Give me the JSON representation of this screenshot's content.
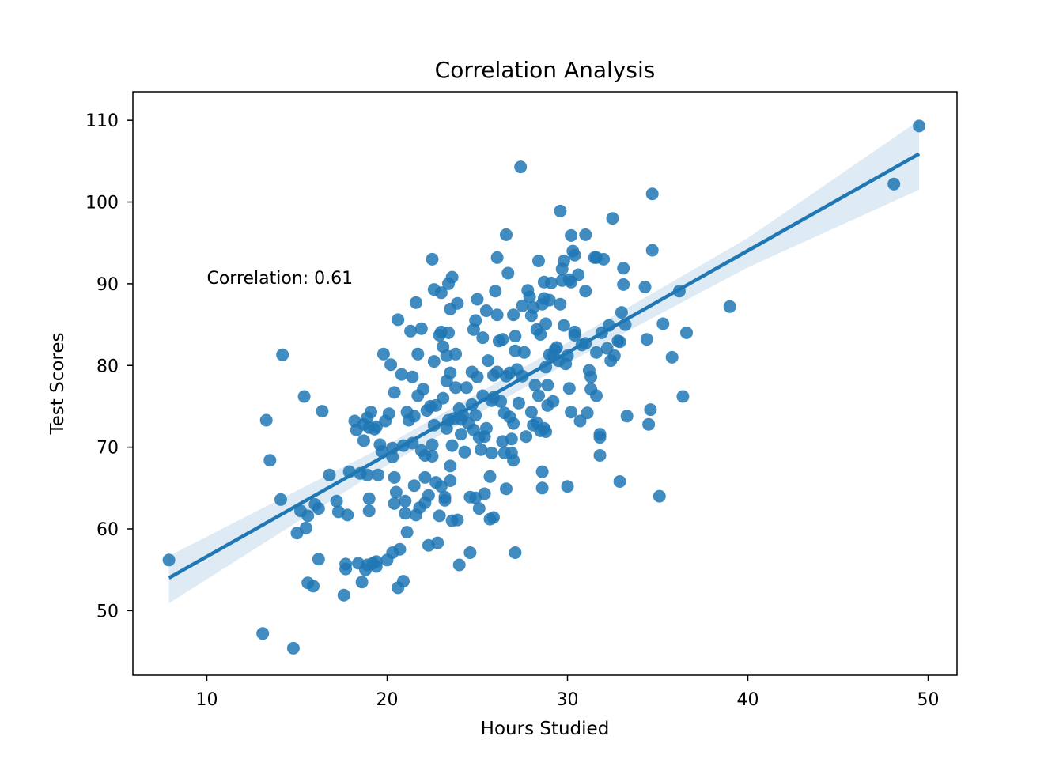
{
  "chart_data": {
    "type": "scatter",
    "title": "Correlation Analysis",
    "xlabel": "Hours Studied",
    "ylabel": "Test Scores",
    "xlim": [
      5.9,
      51.6
    ],
    "ylim": [
      42.1,
      113.5
    ],
    "xticks": [
      10,
      20,
      30,
      40,
      50
    ],
    "yticks": [
      50,
      60,
      70,
      80,
      90,
      100,
      110
    ],
    "grid": false,
    "legend": "none",
    "colors": {
      "points": "#1f77b4",
      "line": "#1f77b4",
      "band": "#1f77b4"
    },
    "annotation": {
      "text": "Correlation: 0.61",
      "x": 10.0,
      "y": 90.0
    },
    "regression": {
      "x": [
        7.9,
        49.5
      ],
      "y": [
        54.0,
        105.9
      ],
      "ci_x": [
        7.9,
        20,
        30,
        40,
        49.5
      ],
      "ci_upper": [
        56.7,
        70.3,
        82.8,
        95.6,
        110.0
      ],
      "ci_lower": [
        50.9,
        67.8,
        80.3,
        92.0,
        101.5
      ]
    },
    "points": [
      [
        7.9,
        56.2
      ],
      [
        13.1,
        47.2
      ],
      [
        13.3,
        73.3
      ],
      [
        13.5,
        68.4
      ],
      [
        14.1,
        63.6
      ],
      [
        14.2,
        81.3
      ],
      [
        14.8,
        45.4
      ],
      [
        15.0,
        59.5
      ],
      [
        15.2,
        62.2
      ],
      [
        15.4,
        76.2
      ],
      [
        15.5,
        60.1
      ],
      [
        15.6,
        53.4
      ],
      [
        15.6,
        61.6
      ],
      [
        15.9,
        53.0
      ],
      [
        16.0,
        63.0
      ],
      [
        16.2,
        56.3
      ],
      [
        16.2,
        62.5
      ],
      [
        16.4,
        74.4
      ],
      [
        16.8,
        66.6
      ],
      [
        17.2,
        63.4
      ],
      [
        17.3,
        62.1
      ],
      [
        17.6,
        51.9
      ],
      [
        17.7,
        55.1
      ],
      [
        17.7,
        55.7
      ],
      [
        17.8,
        61.7
      ],
      [
        17.9,
        67.0
      ],
      [
        18.2,
        73.2
      ],
      [
        18.3,
        72.1
      ],
      [
        18.4,
        55.8
      ],
      [
        18.5,
        66.8
      ],
      [
        18.6,
        53.5
      ],
      [
        18.7,
        70.8
      ],
      [
        18.7,
        72.8
      ],
      [
        18.8,
        55.0
      ],
      [
        18.9,
        66.6
      ],
      [
        18.9,
        73.6
      ],
      [
        18.9,
        55.6
      ],
      [
        19.0,
        72.4
      ],
      [
        19.0,
        63.7
      ],
      [
        19.0,
        62.2
      ],
      [
        19.1,
        74.3
      ],
      [
        19.2,
        55.8
      ],
      [
        19.3,
        72.2
      ],
      [
        19.4,
        56.0
      ],
      [
        19.4,
        72.5
      ],
      [
        19.4,
        55.4
      ],
      [
        19.5,
        66.6
      ],
      [
        19.6,
        70.3
      ],
      [
        19.7,
        69.5
      ],
      [
        19.8,
        81.4
      ],
      [
        19.9,
        73.2
      ],
      [
        20.0,
        56.2
      ],
      [
        20.1,
        74.1
      ],
      [
        20.2,
        80.1
      ],
      [
        20.3,
        57.1
      ],
      [
        20.3,
        69.9
      ],
      [
        20.3,
        68.8
      ],
      [
        20.4,
        63.1
      ],
      [
        20.4,
        66.3
      ],
      [
        20.4,
        76.7
      ],
      [
        20.5,
        64.5
      ],
      [
        20.6,
        52.8
      ],
      [
        20.6,
        85.6
      ],
      [
        20.7,
        57.5
      ],
      [
        20.8,
        78.9
      ],
      [
        20.9,
        53.6
      ],
      [
        20.9,
        70.2
      ],
      [
        21.0,
        63.4
      ],
      [
        21.0,
        61.9
      ],
      [
        21.1,
        74.3
      ],
      [
        21.1,
        59.6
      ],
      [
        21.2,
        73.3
      ],
      [
        21.3,
        84.2
      ],
      [
        21.4,
        78.6
      ],
      [
        21.4,
        70.5
      ],
      [
        21.5,
        65.3
      ],
      [
        21.5,
        73.8
      ],
      [
        21.6,
        61.7
      ],
      [
        21.6,
        87.7
      ],
      [
        21.7,
        81.4
      ],
      [
        21.7,
        76.3
      ],
      [
        21.8,
        62.6
      ],
      [
        21.9,
        69.6
      ],
      [
        21.9,
        84.5
      ],
      [
        22.0,
        77.1
      ],
      [
        22.1,
        63.2
      ],
      [
        22.1,
        69.0
      ],
      [
        22.1,
        66.3
      ],
      [
        22.2,
        74.5
      ],
      [
        22.3,
        64.1
      ],
      [
        22.3,
        58.0
      ],
      [
        22.4,
        75.0
      ],
      [
        22.5,
        70.3
      ],
      [
        22.5,
        68.9
      ],
      [
        22.5,
        93.0
      ],
      [
        22.6,
        72.7
      ],
      [
        22.6,
        80.5
      ],
      [
        22.6,
        89.3
      ],
      [
        22.7,
        65.7
      ],
      [
        22.7,
        75.1
      ],
      [
        22.8,
        58.3
      ],
      [
        22.9,
        61.6
      ],
      [
        22.9,
        83.7
      ],
      [
        23.0,
        84.1
      ],
      [
        23.0,
        65.2
      ],
      [
        23.0,
        88.9
      ],
      [
        23.1,
        76.0
      ],
      [
        23.1,
        82.3
      ],
      [
        23.2,
        63.5
      ],
      [
        23.2,
        63.9
      ],
      [
        23.3,
        81.2
      ],
      [
        23.3,
        72.3
      ],
      [
        23.3,
        78.1
      ],
      [
        23.4,
        73.3
      ],
      [
        23.4,
        84.0
      ],
      [
        23.4,
        90.0
      ],
      [
        23.5,
        65.9
      ],
      [
        23.5,
        67.7
      ],
      [
        23.5,
        79.1
      ],
      [
        23.5,
        86.9
      ],
      [
        23.6,
        70.2
      ],
      [
        23.6,
        61.0
      ],
      [
        23.6,
        90.8
      ],
      [
        23.7,
        73.5
      ],
      [
        23.8,
        81.4
      ],
      [
        23.8,
        77.3
      ],
      [
        23.9,
        87.6
      ],
      [
        23.9,
        61.1
      ],
      [
        24.0,
        74.7
      ],
      [
        24.0,
        55.6
      ],
      [
        24.1,
        71.6
      ],
      [
        24.1,
        73.4
      ],
      [
        24.2,
        73.9
      ],
      [
        24.3,
        69.4
      ],
      [
        24.4,
        77.3
      ],
      [
        24.5,
        72.9
      ],
      [
        24.6,
        63.9
      ],
      [
        24.6,
        57.1
      ],
      [
        24.7,
        75.2
      ],
      [
        24.7,
        79.2
      ],
      [
        24.8,
        72.1
      ],
      [
        24.8,
        84.4
      ],
      [
        24.9,
        63.8
      ],
      [
        24.9,
        73.9
      ],
      [
        24.9,
        85.5
      ],
      [
        25.0,
        88.1
      ],
      [
        25.0,
        78.6
      ],
      [
        25.1,
        71.2
      ],
      [
        25.1,
        62.5
      ],
      [
        25.2,
        69.7
      ],
      [
        25.3,
        76.3
      ],
      [
        25.3,
        83.4
      ],
      [
        25.4,
        71.3
      ],
      [
        25.4,
        64.3
      ],
      [
        25.5,
        86.7
      ],
      [
        25.5,
        72.3
      ],
      [
        25.6,
        80.6
      ],
      [
        25.7,
        61.2
      ],
      [
        25.7,
        66.4
      ],
      [
        25.8,
        69.3
      ],
      [
        25.8,
        75.7
      ],
      [
        25.9,
        78.8
      ],
      [
        25.9,
        76.1
      ],
      [
        25.9,
        61.4
      ],
      [
        26.0,
        89.1
      ],
      [
        26.1,
        93.2
      ],
      [
        26.1,
        79.2
      ],
      [
        26.1,
        86.2
      ],
      [
        26.2,
        83.0
      ],
      [
        26.3,
        75.6
      ],
      [
        26.4,
        70.7
      ],
      [
        26.4,
        83.2
      ],
      [
        26.5,
        69.3
      ],
      [
        26.5,
        74.2
      ],
      [
        26.6,
        78.7
      ],
      [
        26.6,
        64.9
      ],
      [
        26.6,
        96.0
      ],
      [
        26.7,
        91.3
      ],
      [
        26.8,
        73.7
      ],
      [
        26.8,
        79.1
      ],
      [
        26.9,
        69.3
      ],
      [
        26.9,
        71.0
      ],
      [
        27.0,
        86.2
      ],
      [
        27.0,
        72.9
      ],
      [
        27.0,
        68.4
      ],
      [
        27.1,
        57.1
      ],
      [
        27.1,
        83.6
      ],
      [
        27.1,
        81.8
      ],
      [
        27.2,
        79.5
      ],
      [
        27.3,
        75.4
      ],
      [
        27.4,
        104.3
      ],
      [
        27.5,
        87.3
      ],
      [
        27.5,
        78.7
      ],
      [
        27.6,
        81.6
      ],
      [
        27.7,
        71.3
      ],
      [
        27.8,
        89.2
      ],
      [
        27.9,
        88.4
      ],
      [
        28.0,
        74.3
      ],
      [
        28.0,
        86.1
      ],
      [
        28.1,
        87.1
      ],
      [
        28.1,
        72.7
      ],
      [
        28.2,
        77.6
      ],
      [
        28.3,
        73.0
      ],
      [
        28.3,
        84.4
      ],
      [
        28.4,
        92.8
      ],
      [
        28.4,
        76.3
      ],
      [
        28.5,
        72.0
      ],
      [
        28.5,
        83.8
      ],
      [
        28.6,
        87.5
      ],
      [
        28.6,
        67.0
      ],
      [
        28.6,
        65.0
      ],
      [
        28.7,
        88.2
      ],
      [
        28.7,
        72.3
      ],
      [
        28.7,
        90.2
      ],
      [
        28.8,
        85.1
      ],
      [
        28.8,
        79.8
      ],
      [
        28.8,
        71.9
      ],
      [
        28.9,
        75.1
      ],
      [
        28.9,
        77.6
      ],
      [
        29.0,
        81.3
      ],
      [
        29.0,
        88.0
      ],
      [
        29.1,
        90.1
      ],
      [
        29.2,
        75.6
      ],
      [
        29.2,
        81.2
      ],
      [
        29.3,
        81.9
      ],
      [
        29.4,
        82.2
      ],
      [
        29.5,
        80.6
      ],
      [
        29.6,
        87.5
      ],
      [
        29.6,
        98.9
      ],
      [
        29.7,
        90.4
      ],
      [
        29.7,
        91.8
      ],
      [
        29.8,
        92.8
      ],
      [
        29.8,
        84.9
      ],
      [
        29.9,
        80.2
      ],
      [
        30.0,
        65.2
      ],
      [
        30.0,
        81.2
      ],
      [
        30.1,
        77.2
      ],
      [
        30.1,
        90.5
      ],
      [
        30.2,
        74.3
      ],
      [
        30.2,
        95.9
      ],
      [
        30.2,
        90.2
      ],
      [
        30.3,
        94.0
      ],
      [
        30.4,
        83.7
      ],
      [
        30.4,
        84.1
      ],
      [
        30.4,
        93.5
      ],
      [
        30.6,
        91.1
      ],
      [
        30.7,
        73.2
      ],
      [
        30.8,
        82.5
      ],
      [
        31.0,
        89.1
      ],
      [
        31.0,
        96.0
      ],
      [
        31.0,
        82.7
      ],
      [
        31.1,
        74.2
      ],
      [
        31.2,
        79.4
      ],
      [
        31.3,
        78.6
      ],
      [
        31.3,
        77.1
      ],
      [
        31.5,
        93.2
      ],
      [
        31.6,
        76.3
      ],
      [
        31.6,
        81.6
      ],
      [
        31.6,
        93.2
      ],
      [
        31.8,
        71.2
      ],
      [
        31.8,
        71.6
      ],
      [
        31.8,
        69.0
      ],
      [
        31.9,
        84.0
      ],
      [
        32.0,
        93.0
      ],
      [
        32.2,
        82.1
      ],
      [
        32.3,
        84.9
      ],
      [
        32.4,
        80.6
      ],
      [
        32.5,
        98.0
      ],
      [
        32.6,
        81.2
      ],
      [
        32.8,
        83.0
      ],
      [
        32.9,
        65.8
      ],
      [
        32.9,
        82.9
      ],
      [
        33.0,
        86.5
      ],
      [
        33.1,
        91.9
      ],
      [
        33.1,
        89.9
      ],
      [
        33.2,
        85.0
      ],
      [
        33.3,
        73.8
      ],
      [
        34.3,
        89.6
      ],
      [
        34.4,
        83.2
      ],
      [
        34.5,
        72.8
      ],
      [
        34.6,
        74.6
      ],
      [
        34.7,
        101.0
      ],
      [
        34.7,
        94.1
      ],
      [
        35.1,
        64.0
      ],
      [
        35.3,
        85.1
      ],
      [
        35.8,
        81.0
      ],
      [
        36.2,
        89.1
      ],
      [
        36.4,
        76.2
      ],
      [
        36.6,
        84.0
      ],
      [
        39.0,
        87.2
      ],
      [
        48.1,
        102.2
      ],
      [
        49.5,
        109.3
      ]
    ]
  }
}
